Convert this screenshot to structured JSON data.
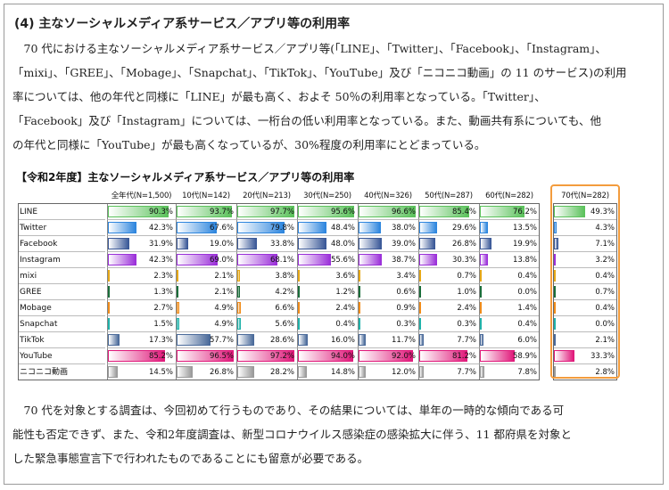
{
  "section_heading": "(4)  主なソーシャルメディア系サービス／アプリ等の利用率",
  "intro_lines": [
    "　70 代における主なソーシャルメディア系サービス／アプリ等(「LINE」、「Twitter」、「Facebook」、「Instagram」、",
    "「mixi」、「GREE」、「Mobage」、「Snapchat」、「TikTok」、「YouTube」及び「ニコニコ動画」の 11 のサービス)の利用",
    "率については、他の年代と同様に「LINE」が最も高く、およそ 50％の利用率となっている。「Twitter」、",
    "「Facebook」及び「Instagram」については、一桁台の低い利用率となっている。また、動画共有系についても、他",
    "の年代と同様に「YouTube」が最も高くなっているが、30%程度の利用率にとどまっている。"
  ],
  "chart_title": "【令和2年度】主なソーシャルメディア系サービス／アプリ等の利用率",
  "closing_lines": [
    "　70 代を対象とする調査は、今回初めて行うものであり、その結果については、単年の一時的な傾向である可",
    "能性も否定できず、また、令和2年度調査は、新型コロナウイルス感染症の感染拡大に伴う、11 都府県を対象と",
    "した緊急事態宣言下で行われたものであることにも留意が必要である。"
  ],
  "chart_data": {
    "type": "table",
    "columns": [
      "全年代(N=1,500)",
      "10代(N=142)",
      "20代(N=213)",
      "30代(N=250)",
      "40代(N=326)",
      "50代(N=287)",
      "60代(N=282)",
      "70代(N=282)"
    ],
    "rows": [
      {
        "service": "LINE",
        "color": "#5cc25c",
        "values": [
          90.3,
          93.7,
          97.7,
          95.6,
          96.6,
          85.4,
          76.2,
          49.3
        ]
      },
      {
        "service": "Twitter",
        "color": "#2e86de",
        "values": [
          42.3,
          67.6,
          79.8,
          48.4,
          38.0,
          29.6,
          13.5,
          4.3
        ]
      },
      {
        "service": "Facebook",
        "color": "#3b5998",
        "values": [
          31.9,
          19.0,
          33.8,
          48.0,
          39.0,
          26.8,
          19.9,
          7.1
        ]
      },
      {
        "service": "Instagram",
        "color": "#9b30d9",
        "values": [
          42.3,
          69.0,
          68.1,
          55.6,
          38.7,
          30.3,
          13.8,
          3.2
        ]
      },
      {
        "service": "mixi",
        "color": "#e6a817",
        "values": [
          2.3,
          2.1,
          3.8,
          3.6,
          3.4,
          0.7,
          0.4,
          0.4
        ]
      },
      {
        "service": "GREE",
        "color": "#1a6e3a",
        "values": [
          1.3,
          2.1,
          4.2,
          1.2,
          0.6,
          1.0,
          0.0,
          0.7
        ]
      },
      {
        "service": "Mobage",
        "color": "#f08c1a",
        "values": [
          2.7,
          4.9,
          6.6,
          2.4,
          0.9,
          2.4,
          1.4,
          0.4
        ]
      },
      {
        "service": "Snapchat",
        "color": "#20b2aa",
        "values": [
          1.5,
          4.9,
          5.6,
          0.4,
          0.3,
          0.3,
          0.4,
          0.0
        ]
      },
      {
        "service": "TikTok",
        "color": "#4a6a9a",
        "values": [
          17.3,
          57.7,
          28.6,
          16.0,
          11.7,
          7.7,
          6.0,
          2.1
        ]
      },
      {
        "service": "YouTube",
        "color": "#e0197a",
        "values": [
          85.2,
          96.5,
          97.2,
          94.0,
          92.0,
          81.2,
          58.9,
          33.3
        ]
      },
      {
        "service": "ニコニコ動画",
        "color": "#9a9a9a",
        "values": [
          14.5,
          26.8,
          28.2,
          14.8,
          12.0,
          7.7,
          7.8,
          2.8
        ]
      }
    ],
    "unit": "%",
    "xlim": [
      0,
      100
    ]
  }
}
